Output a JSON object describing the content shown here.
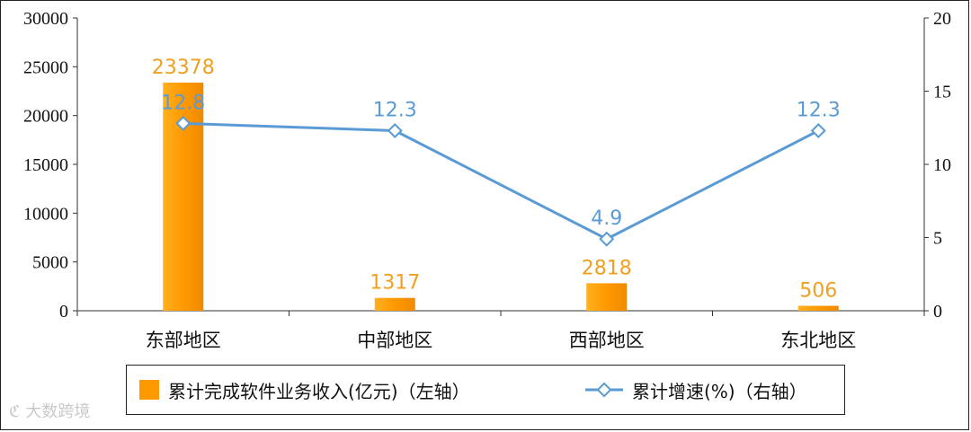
{
  "chart_data": {
    "type": "bar",
    "categories": [
      "东部地区",
      "中部地区",
      "西部地区",
      "东北地区"
    ],
    "series": [
      {
        "name": "累计完成软件业务收入(亿元)（左轴）",
        "type": "bar",
        "axis": "left",
        "values": [
          23378,
          1317,
          2818,
          506
        ],
        "labels": [
          "23378",
          "1317",
          "2818",
          "506"
        ],
        "color": "#ff9900"
      },
      {
        "name": "累计增速(%)（右轴）",
        "type": "line",
        "axis": "right",
        "values": [
          12.8,
          12.3,
          4.9,
          12.3
        ],
        "labels": [
          "12.8",
          "12.3",
          "4.9",
          "12.3"
        ],
        "color": "#5b9bd5",
        "marker": "diamond"
      }
    ],
    "y_left": {
      "ylim": [
        0,
        30000
      ],
      "ticks": [
        "0",
        "5000",
        "10000",
        "15000",
        "20000",
        "25000",
        "30000"
      ]
    },
    "y_right": {
      "ylim": [
        0,
        20
      ],
      "ticks": [
        "0",
        "5",
        "10",
        "15",
        "20"
      ]
    },
    "legend": {
      "position": "bottom"
    },
    "grid": false
  },
  "legend": {
    "bar_label": "累计完成软件业务收入(亿元)（左轴）",
    "line_label": "累计增速(%)（右轴）"
  },
  "watermark": "大数跨境",
  "colors": {
    "bar": "#ff9900",
    "line": "#5b9bd5",
    "bar_label": "#f0a020"
  }
}
